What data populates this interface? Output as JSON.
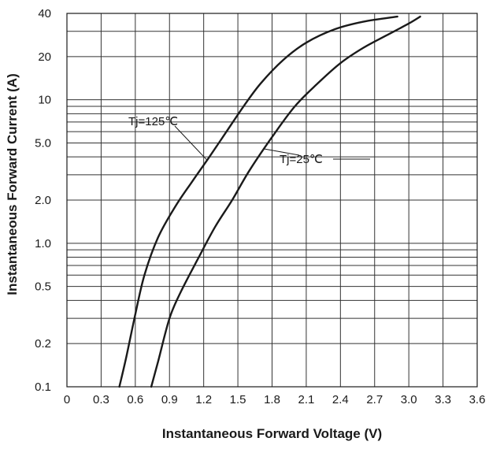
{
  "chart_data": {
    "type": "line",
    "title": "",
    "xlabel": "Instantaneous Forward Voltage (V)",
    "ylabel": "Instantaneous Forward Current (A)",
    "xlim": [
      0,
      3.6
    ],
    "ylim": [
      0.1,
      40
    ],
    "yscale": "log",
    "grid": true,
    "x_ticks": [
      0,
      0.3,
      0.6,
      0.9,
      1.2,
      1.5,
      1.8,
      2.1,
      2.4,
      2.7,
      3.0,
      3.3,
      3.6
    ],
    "x_tick_labels": [
      "0",
      "0.3",
      "0.6",
      "0.9",
      "1.2",
      "1.5",
      "1.8",
      "2.1",
      "2.4",
      "2.7",
      "3.0",
      "3.3",
      "3.6"
    ],
    "y_ticks": [
      0.1,
      0.2,
      0.5,
      1.0,
      2.0,
      5.0,
      10,
      20,
      40
    ],
    "y_tick_labels": [
      "0.1",
      "0.2",
      "0.5",
      "1.0",
      "2.0",
      "5.0",
      "10",
      "20",
      "40"
    ],
    "series": [
      {
        "name": "Tj=125℃",
        "color": "#1a1a1a",
        "x": [
          0.46,
          0.52,
          0.6,
          0.68,
          0.8,
          0.95,
          1.1,
          1.25,
          1.4,
          1.55,
          1.7,
          1.9,
          2.1,
          2.35,
          2.6,
          2.9
        ],
        "y": [
          0.1,
          0.16,
          0.32,
          0.6,
          1.1,
          1.8,
          2.7,
          4.0,
          6.0,
          9.0,
          13.0,
          19.0,
          25.0,
          31.0,
          35.0,
          38.0
        ]
      },
      {
        "name": "Tj=25℃",
        "color": "#1a1a1a",
        "x": [
          0.74,
          0.8,
          0.9,
          1.0,
          1.15,
          1.3,
          1.45,
          1.6,
          1.8,
          2.0,
          2.2,
          2.4,
          2.6,
          2.8,
          3.0,
          3.1
        ],
        "y": [
          0.1,
          0.15,
          0.3,
          0.46,
          0.78,
          1.3,
          2.0,
          3.2,
          5.5,
          9.0,
          13.0,
          18.0,
          23.0,
          28.0,
          34.0,
          38.0
        ]
      }
    ],
    "annotations": [
      {
        "text": "Tj=125℃",
        "series": 0,
        "at_x": 1.23
      },
      {
        "text": "Tj=25℃",
        "series": 1,
        "at_x": 1.73
      }
    ]
  }
}
